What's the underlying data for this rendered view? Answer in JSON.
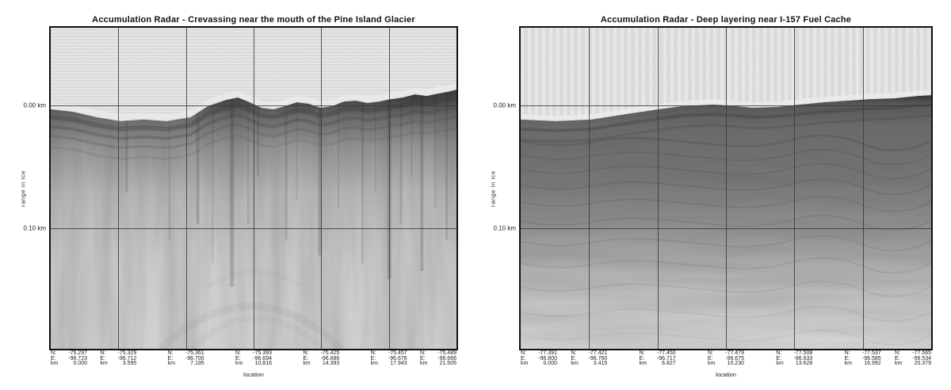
{
  "figure": {
    "background": "#ffffff",
    "grid_color": "#3a3a3a",
    "colormap": "grayscale"
  },
  "tick_prefixes": [
    "N:",
    "E:",
    "km"
  ],
  "panels": [
    {
      "title": "Accumulation Radar - Crevassing near the mouth of the Pine Island Glacier",
      "ylabel": "range in ice",
      "xlabel": "location",
      "yticks": [
        "0.00 km",
        "0.10 km"
      ],
      "xticks": [
        {
          "n": "-75.297",
          "e": "-96.723",
          "km": "0.000"
        },
        {
          "n": "-75.329",
          "e": "-96.712",
          "km": "3.595"
        },
        {
          "n": "-75.361",
          "e": "-96.700",
          "km": "7.195"
        },
        {
          "n": "-75.393",
          "e": "-96.694",
          "km": "10.816"
        },
        {
          "n": "-75.425",
          "e": "-96.686",
          "km": "14.393"
        },
        {
          "n": "-75.457",
          "e": "-96.676",
          "km": "17.943"
        },
        {
          "n": "-75.489",
          "e": "-96.666",
          "km": "21.505"
        }
      ]
    },
    {
      "title": "Accumulation Radar - Deep layering near I-157 Fuel Cache",
      "ylabel": "range in ice",
      "xlabel": "location",
      "yticks": [
        "0.00 km",
        "0.10 km"
      ],
      "xticks": [
        {
          "n": "-77.391",
          "e": "-96.800",
          "km": "0.000"
        },
        {
          "n": "-77.421",
          "e": "-96.760",
          "km": "3.415"
        },
        {
          "n": "-77.450",
          "e": "-96.717",
          "km": "6.827"
        },
        {
          "n": "-77.479",
          "e": "-96.675",
          "km": "10.230"
        },
        {
          "n": "-77.508",
          "e": "-96.633",
          "km": "13.628"
        },
        {
          "n": "-77.537",
          "e": "-96.585",
          "km": "16.992"
        },
        {
          "n": "-77.565",
          "e": "-96.534",
          "km": "20.379"
        }
      ]
    }
  ],
  "chart_data": [
    {
      "type": "heatmap",
      "title": "Accumulation Radar - Crevassing near the mouth of the Pine Island Glacier",
      "xlabel": "location",
      "ylabel": "range in ice",
      "y_ticks_km": [
        0.0,
        0.1
      ],
      "ylim_km": [
        -0.065,
        0.199
      ],
      "grid": true,
      "x_ticks": [
        {
          "N": -75.297,
          "E": -96.723,
          "km": 0.0
        },
        {
          "N": -75.329,
          "E": -96.712,
          "km": 3.595
        },
        {
          "N": -75.361,
          "E": -96.7,
          "km": 7.195
        },
        {
          "N": -75.393,
          "E": -96.694,
          "km": 10.816
        },
        {
          "N": -75.425,
          "E": -96.686,
          "km": 14.393
        },
        {
          "N": -75.457,
          "E": -96.676,
          "km": 17.943
        },
        {
          "N": -75.489,
          "E": -96.666,
          "km": 21.505
        }
      ],
      "content": "grayscale radar echogram: light banded air region above an undulating dark snow-surface return near 0.00 km, dense near-surface layering with many vertical crevasse diffraction streaks fading to light gray with depth"
    },
    {
      "type": "heatmap",
      "title": "Accumulation Radar - Deep layering near I-157 Fuel Cache",
      "xlabel": "location",
      "ylabel": "range in ice",
      "y_ticks_km": [
        0.0,
        0.1
      ],
      "ylim_km": [
        -0.065,
        0.199
      ],
      "grid": true,
      "x_ticks": [
        {
          "N": -77.391,
          "E": -96.8,
          "km": 0.0
        },
        {
          "N": -77.421,
          "E": -96.76,
          "km": 3.415
        },
        {
          "N": -77.45,
          "E": -96.717,
          "km": 6.827
        },
        {
          "N": -77.479,
          "E": -96.675,
          "km": 10.23
        },
        {
          "N": -77.508,
          "E": -96.633,
          "km": 13.628
        },
        {
          "N": -77.537,
          "E": -96.585,
          "km": 16.992
        },
        {
          "N": -77.565,
          "E": -96.534,
          "km": 20.379
        }
      ],
      "content": "grayscale radar echogram: vertically banded light air region, smooth surface return near 0.00 km, broad medium-dark firn zone with continuous gently undulating internal layers fading to light gray with depth"
    }
  ]
}
